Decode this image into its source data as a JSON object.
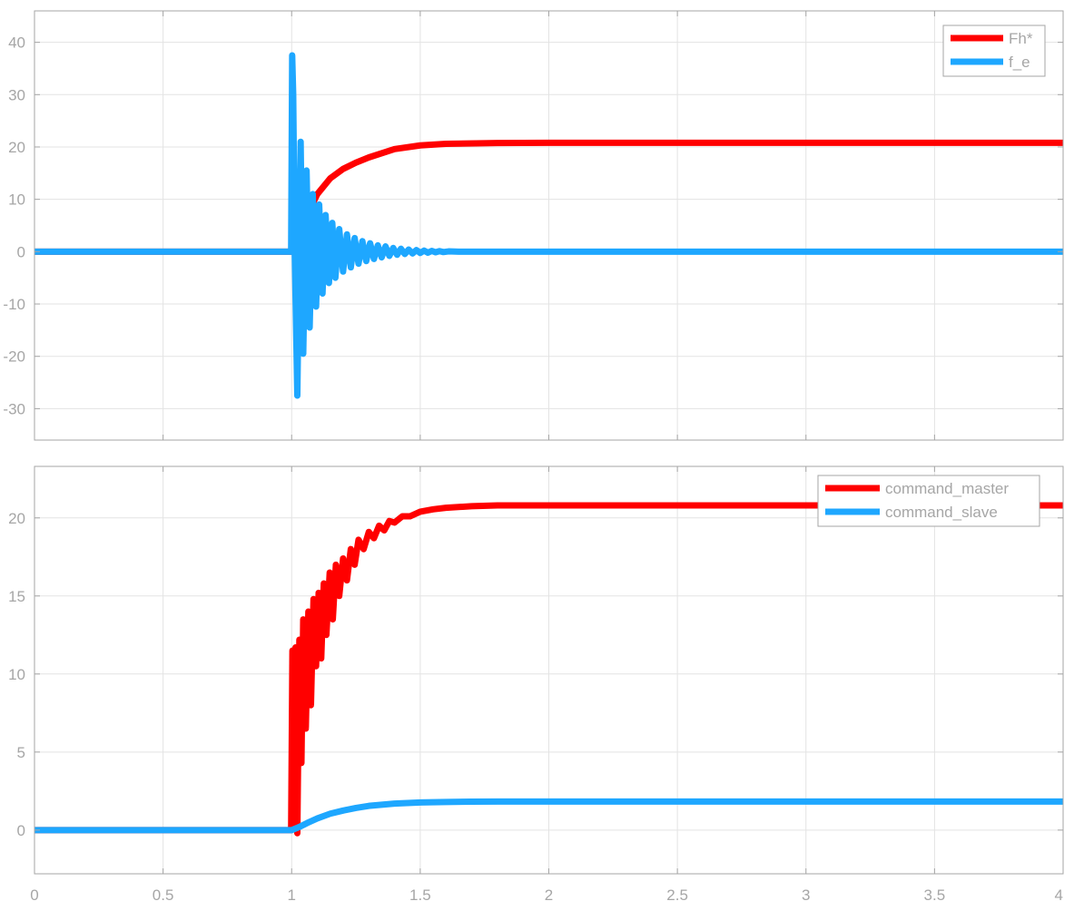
{
  "chart_data": [
    {
      "type": "line",
      "title": "",
      "xlabel": "",
      "ylabel": "",
      "xlim": [
        0,
        4
      ],
      "ylim": [
        -36,
        46
      ],
      "grid": true,
      "legend_position": "top-right",
      "x_ticks": [
        {
          "value": 0,
          "label": ""
        },
        {
          "value": 0.5,
          "label": ""
        },
        {
          "value": 1,
          "label": ""
        },
        {
          "value": 1.5,
          "label": ""
        },
        {
          "value": 2,
          "label": ""
        },
        {
          "value": 2.5,
          "label": ""
        },
        {
          "value": 3,
          "label": ""
        },
        {
          "value": 3.5,
          "label": ""
        },
        {
          "value": 4,
          "label": ""
        }
      ],
      "y_ticks": [
        {
          "value": -30,
          "label": "-30"
        },
        {
          "value": -20,
          "label": "-20"
        },
        {
          "value": -10,
          "label": "-10"
        },
        {
          "value": 0,
          "label": "0"
        },
        {
          "value": 10,
          "label": "10"
        },
        {
          "value": 20,
          "label": "20"
        },
        {
          "value": 30,
          "label": "30"
        },
        {
          "value": 40,
          "label": "40"
        }
      ],
      "series": [
        {
          "name": "Fh*",
          "color": "#ff0000",
          "line_width": 7,
          "x": [
            0,
            1.0,
            1.025,
            1.05,
            1.075,
            1.1,
            1.15,
            1.2,
            1.25,
            1.3,
            1.4,
            1.5,
            1.6,
            1.8,
            2.0,
            3.0,
            4.0
          ],
          "y": [
            0,
            0,
            1.5,
            5.0,
            8.5,
            11.0,
            14.0,
            15.8,
            17.0,
            18.0,
            19.6,
            20.3,
            20.6,
            20.75,
            20.8,
            20.8,
            20.8
          ]
        },
        {
          "name": "f_e",
          "color": "#1ea7ff",
          "line_width": 7,
          "x": [
            0,
            0.998,
            1.002,
            1.006,
            1.012,
            1.022,
            1.035,
            1.045,
            1.058,
            1.07,
            1.082,
            1.095,
            1.107,
            1.12,
            1.132,
            1.145,
            1.158,
            1.17,
            1.185,
            1.2,
            1.215,
            1.23,
            1.245,
            1.26,
            1.275,
            1.29,
            1.305,
            1.32,
            1.335,
            1.35,
            1.365,
            1.38,
            1.395,
            1.41,
            1.425,
            1.44,
            1.455,
            1.47,
            1.485,
            1.5,
            1.515,
            1.53,
            1.545,
            1.56,
            1.575,
            1.59,
            1.61,
            1.65,
            1.7,
            4.0
          ],
          "y": [
            0,
            0,
            37.5,
            30.0,
            0,
            -27.5,
            21.0,
            -19.5,
            15.5,
            -14.5,
            11.0,
            -10.5,
            9.0,
            -8.0,
            7.0,
            -6.0,
            5.5,
            -5.0,
            4.3,
            -3.8,
            3.3,
            -3.0,
            2.6,
            -2.3,
            2.0,
            -1.8,
            1.6,
            -1.4,
            1.2,
            -1.1,
            1.0,
            -0.8,
            0.7,
            -0.6,
            0.55,
            -0.45,
            0.4,
            -0.35,
            0.3,
            -0.25,
            0.2,
            -0.2,
            0.15,
            -0.12,
            0.1,
            -0.08,
            0.05,
            0,
            0,
            0
          ]
        }
      ]
    },
    {
      "type": "line",
      "title": "",
      "xlabel": "",
      "ylabel": "",
      "xlim": [
        0,
        4
      ],
      "ylim": [
        -2.8,
        23.3
      ],
      "grid": true,
      "legend_position": "top-right",
      "x_ticks": [
        {
          "value": 0,
          "label": "0"
        },
        {
          "value": 0.5,
          "label": "0.5"
        },
        {
          "value": 1,
          "label": "1"
        },
        {
          "value": 1.5,
          "label": "1.5"
        },
        {
          "value": 2,
          "label": "2"
        },
        {
          "value": 2.5,
          "label": "2.5"
        },
        {
          "value": 3,
          "label": "3"
        },
        {
          "value": 3.5,
          "label": "3.5"
        },
        {
          "value": 4,
          "label": "4"
        }
      ],
      "y_ticks": [
        {
          "value": 0,
          "label": "0"
        },
        {
          "value": 5,
          "label": "5"
        },
        {
          "value": 10,
          "label": "10"
        },
        {
          "value": 15,
          "label": "15"
        },
        {
          "value": 20,
          "label": "20"
        }
      ],
      "series": [
        {
          "name": "command_master",
          "color": "#ff0000",
          "line_width": 7,
          "x": [
            0,
            0.998,
            1.003,
            1.008,
            1.015,
            1.022,
            1.03,
            1.038,
            1.045,
            1.055,
            1.065,
            1.075,
            1.085,
            1.095,
            1.105,
            1.115,
            1.125,
            1.135,
            1.148,
            1.16,
            1.172,
            1.185,
            1.2,
            1.215,
            1.23,
            1.245,
            1.26,
            1.28,
            1.3,
            1.32,
            1.34,
            1.36,
            1.38,
            1.4,
            1.43,
            1.46,
            1.5,
            1.55,
            1.6,
            1.7,
            1.8,
            2.0,
            3.0,
            4.0
          ],
          "y": [
            0,
            0,
            11.5,
            7.0,
            11.7,
            -0.2,
            12.2,
            4.3,
            13.5,
            6.5,
            14.0,
            8.0,
            14.8,
            10.5,
            15.2,
            11.0,
            15.8,
            12.5,
            16.5,
            13.5,
            17.0,
            15.0,
            17.4,
            16.0,
            18.0,
            17.0,
            18.6,
            18.0,
            19.1,
            18.7,
            19.5,
            19.2,
            19.8,
            19.7,
            20.1,
            20.1,
            20.4,
            20.55,
            20.65,
            20.75,
            20.8,
            20.8,
            20.8,
            20.8
          ]
        },
        {
          "name": "command_slave",
          "color": "#1ea7ff",
          "line_width": 7,
          "x": [
            0,
            1.0,
            1.03,
            1.06,
            1.1,
            1.15,
            1.2,
            1.25,
            1.3,
            1.4,
            1.5,
            1.6,
            1.7,
            1.8,
            2.0,
            3.0,
            4.0
          ],
          "y": [
            0,
            0,
            0.2,
            0.45,
            0.75,
            1.05,
            1.25,
            1.42,
            1.55,
            1.7,
            1.77,
            1.8,
            1.82,
            1.83,
            1.83,
            1.83,
            1.83
          ]
        }
      ]
    }
  ]
}
